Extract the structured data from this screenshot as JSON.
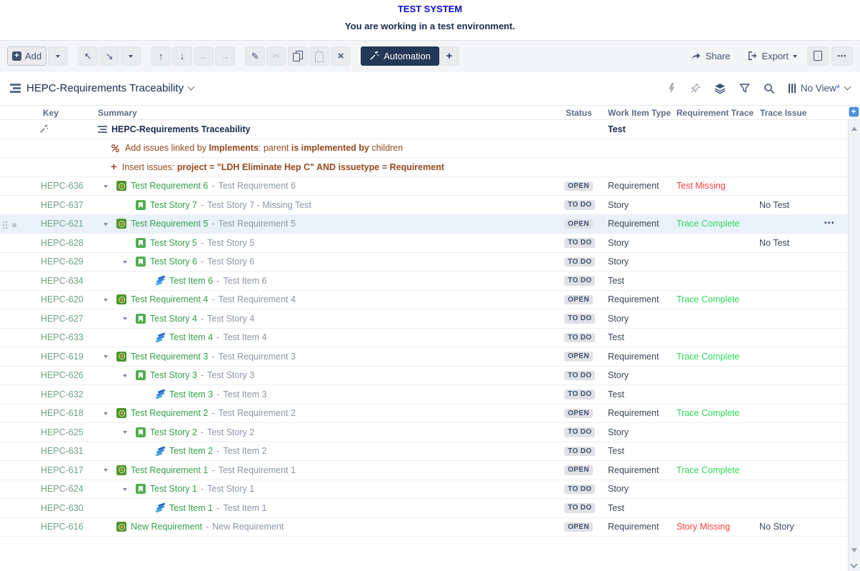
{
  "banner": {
    "title": "TEST SYSTEM",
    "subtitle": "You are working in a test environment."
  },
  "toolbar": {
    "add_label": "Add",
    "automation_label": "Automation",
    "share_label": "Share",
    "export_label": "Export",
    "more_label": "•••"
  },
  "structure": {
    "title": "HEPC-Requirements Traceability",
    "view_label": "No View",
    "view_modified_mark": "*"
  },
  "table": {
    "columns": {
      "key": "Key",
      "summary": "Summary",
      "status": "Status",
      "work_item_type": "Work Item Type",
      "requirement_trace": "Requirement Trace",
      "trace_issue": "Trace Issue"
    },
    "add_column_label": "+",
    "summary_separator": "-",
    "root": {
      "title": "HEPC-Requirements Traceability",
      "work_item_type": "Test"
    },
    "generators": [
      {
        "icon": "link",
        "segments": [
          {
            "text": "Add issues linked by ",
            "bold": false
          },
          {
            "text": "Implements",
            "bold": true
          },
          {
            "text": ": parent ",
            "bold": false
          },
          {
            "text": "is implemented by",
            "bold": true
          },
          {
            "text": " children",
            "bold": false
          }
        ]
      },
      {
        "icon": "plus",
        "segments": [
          {
            "text": "Insert issues: ",
            "bold": false
          },
          {
            "text": "project = \"LDH Eliminate Hep C\" AND issuetype = Requirement",
            "bold": true
          }
        ]
      }
    ],
    "rows": [
      {
        "key": "HEPC-636",
        "indent": 1,
        "expander": true,
        "icon": "requirement",
        "summary": "Test Requirement 6",
        "description": "Test Requirement 6",
        "status": "OPEN",
        "work_item_type": "Requirement",
        "requirement_trace": "Test Missing",
        "trace_state": "trace-missing",
        "trace_issue": ""
      },
      {
        "key": "HEPC-637",
        "indent": 2,
        "expander": false,
        "icon": "story",
        "summary": "Test Story 7",
        "description": "Test Story 7 - Missing Test",
        "status": "TO DO",
        "work_item_type": "Story",
        "requirement_trace": "",
        "trace_state": "",
        "trace_issue": "No Test"
      },
      {
        "key": "HEPC-621",
        "indent": 1,
        "expander": true,
        "icon": "requirement",
        "summary": "Test Requirement 5",
        "description": "Test Requirement 5",
        "status": "OPEN",
        "work_item_type": "Requirement",
        "requirement_trace": "Trace Complete",
        "trace_state": "trace-complete",
        "trace_issue": "",
        "selected": true
      },
      {
        "key": "HEPC-628",
        "indent": 2,
        "expander": false,
        "icon": "story",
        "summary": "Test Story 5",
        "description": "Test Story 5",
        "status": "TO DO",
        "work_item_type": "Story",
        "requirement_trace": "",
        "trace_state": "",
        "trace_issue": "No Test"
      },
      {
        "key": "HEPC-629",
        "indent": 2,
        "expander": true,
        "icon": "story",
        "summary": "Test Story 6",
        "description": "Test Story 6",
        "status": "TO DO",
        "work_item_type": "Story",
        "requirement_trace": "",
        "trace_state": "",
        "trace_issue": ""
      },
      {
        "key": "HEPC-634",
        "indent": 3,
        "expander": false,
        "icon": "test",
        "summary": "Test Item 6",
        "description": "Test Item 6",
        "status": "TO DO",
        "work_item_type": "Test",
        "requirement_trace": "",
        "trace_state": "",
        "trace_issue": ""
      },
      {
        "key": "HEPC-620",
        "indent": 1,
        "expander": true,
        "icon": "requirement",
        "summary": "Test Requirement 4",
        "description": "Test Requirement 4",
        "status": "OPEN",
        "work_item_type": "Requirement",
        "requirement_trace": "Trace Complete",
        "trace_state": "trace-complete",
        "trace_issue": ""
      },
      {
        "key": "HEPC-627",
        "indent": 2,
        "expander": true,
        "icon": "story",
        "summary": "Test Story 4",
        "description": "Test Story 4",
        "status": "TO DO",
        "work_item_type": "Story",
        "requirement_trace": "",
        "trace_state": "",
        "trace_issue": ""
      },
      {
        "key": "HEPC-633",
        "indent": 3,
        "expander": false,
        "icon": "test",
        "summary": "Test Item 4",
        "description": "Test Item 4",
        "status": "TO DO",
        "work_item_type": "Test",
        "requirement_trace": "",
        "trace_state": "",
        "trace_issue": ""
      },
      {
        "key": "HEPC-619",
        "indent": 1,
        "expander": true,
        "icon": "requirement",
        "summary": "Test Requirement 3",
        "description": "Test Requirement 3",
        "status": "OPEN",
        "work_item_type": "Requirement",
        "requirement_trace": "Trace Complete",
        "trace_state": "trace-complete",
        "trace_issue": ""
      },
      {
        "key": "HEPC-626",
        "indent": 2,
        "expander": true,
        "icon": "story",
        "summary": "Test Story 3",
        "description": "Test Story 3",
        "status": "TO DO",
        "work_item_type": "Story",
        "requirement_trace": "",
        "trace_state": "",
        "trace_issue": ""
      },
      {
        "key": "HEPC-632",
        "indent": 3,
        "expander": false,
        "icon": "test",
        "summary": "Test Item 3",
        "description": "Test Item 3",
        "status": "TO DO",
        "work_item_type": "Test",
        "requirement_trace": "",
        "trace_state": "",
        "trace_issue": ""
      },
      {
        "key": "HEPC-618",
        "indent": 1,
        "expander": true,
        "icon": "requirement",
        "summary": "Test Requirement 2",
        "description": "Test Requirement 2",
        "status": "OPEN",
        "work_item_type": "Requirement",
        "requirement_trace": "Trace Complete",
        "trace_state": "trace-complete",
        "trace_issue": ""
      },
      {
        "key": "HEPC-625",
        "indent": 2,
        "expander": true,
        "icon": "story",
        "summary": "Test Story 2",
        "description": "Test Story 2",
        "status": "TO DO",
        "work_item_type": "Story",
        "requirement_trace": "",
        "trace_state": "",
        "trace_issue": ""
      },
      {
        "key": "HEPC-631",
        "indent": 3,
        "expander": false,
        "icon": "test",
        "summary": "Test Item 2",
        "description": "Test Item 2",
        "status": "TO DO",
        "work_item_type": "Test",
        "requirement_trace": "",
        "trace_state": "",
        "trace_issue": ""
      },
      {
        "key": "HEPC-617",
        "indent": 1,
        "expander": true,
        "icon": "requirement",
        "summary": "Test Requirement 1",
        "description": "Test Requirement 1",
        "status": "OPEN",
        "work_item_type": "Requirement",
        "requirement_trace": "Trace Complete",
        "trace_state": "trace-complete",
        "trace_issue": ""
      },
      {
        "key": "HEPC-624",
        "indent": 2,
        "expander": true,
        "icon": "story",
        "summary": "Test Story 1",
        "description": "Test Story 1",
        "status": "TO DO",
        "work_item_type": "Story",
        "requirement_trace": "",
        "trace_state": "",
        "trace_issue": ""
      },
      {
        "key": "HEPC-630",
        "indent": 3,
        "expander": false,
        "icon": "test",
        "summary": "Test Item 1",
        "description": "Test Item 1",
        "status": "TO DO",
        "work_item_type": "Test",
        "requirement_trace": "",
        "trace_state": "",
        "trace_issue": ""
      },
      {
        "key": "HEPC-616",
        "indent": 1,
        "expander": false,
        "icon": "requirement",
        "summary": "New Requirement",
        "description": "New Requirement",
        "status": "OPEN",
        "work_item_type": "Requirement",
        "requirement_trace": "Story Missing",
        "trace_state": "trace-missing",
        "trace_issue": "No Story"
      }
    ]
  },
  "colors": {
    "banner-title": "#0b0bd2",
    "banner-subtitle": "#172b4d",
    "toolbar-bg": "#f4f5f7",
    "automation-bg": "#253858",
    "icon-color": "#42526e",
    "header-text": "#5e6c84",
    "key-link": "#6fa283",
    "summary-link": "#33a04a",
    "summary-desc": "#8c96a5",
    "trace-complete": "#2edb58",
    "trace-missing": "#ff4040",
    "generator-text": "#96491d",
    "selected-row-bg": "#e9f2fb",
    "status-lozenge-bg": "#dfe1e6",
    "status-lozenge-text": "#42526e",
    "requirement-icon": "#4e9427",
    "story-icon": "#4fae4d"
  }
}
